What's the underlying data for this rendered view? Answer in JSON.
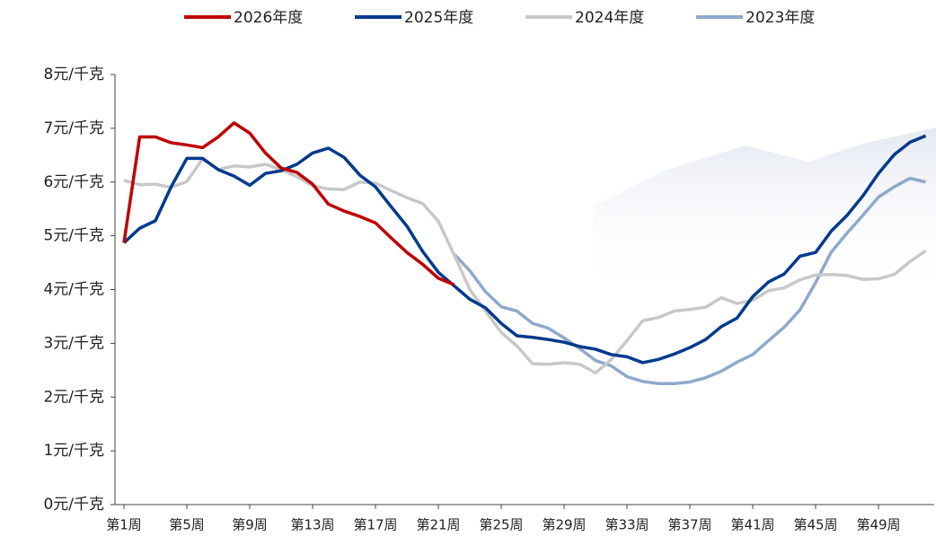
{
  "chart_data": {
    "type": "line",
    "categories": [
      "第1周",
      null,
      null,
      null,
      "第5周",
      null,
      null,
      null,
      "第9周",
      null,
      null,
      null,
      "第13周",
      null,
      null,
      null,
      "第17周",
      null,
      null,
      null,
      "第21周",
      null,
      null,
      null,
      "第25周",
      null,
      null,
      null,
      "第29周",
      null,
      null,
      null,
      "第33周",
      null,
      null,
      null,
      "第37周",
      null,
      null,
      null,
      "第41周",
      null,
      null,
      null,
      "第45周",
      null,
      null,
      null,
      "第49周",
      null,
      null,
      null
    ],
    "ylim": [
      0,
      8
    ],
    "yticks": [
      {
        "value": 0,
        "label": "0元/千克"
      },
      {
        "value": 1,
        "label": "1元/千克"
      },
      {
        "value": 2,
        "label": "2元/千克"
      },
      {
        "value": 3,
        "label": "3元/千克"
      },
      {
        "value": 4,
        "label": "4元/千克"
      },
      {
        "value": 5,
        "label": "5元/千克"
      },
      {
        "value": 6,
        "label": "6元/千克"
      },
      {
        "value": 7,
        "label": "7元/千克"
      },
      {
        "value": 8,
        "label": "8元/千克"
      }
    ],
    "legend": "top",
    "series": [
      {
        "name": "2026年度",
        "color": "#c00000",
        "values": [
          4.87,
          6.84,
          6.84,
          6.73,
          6.69,
          6.64,
          6.84,
          7.1,
          6.91,
          6.54,
          6.26,
          6.18,
          5.96,
          5.59,
          5.46,
          5.36,
          5.24,
          4.96,
          4.69,
          4.47,
          4.21,
          4.09,
          null,
          null,
          null,
          null,
          null,
          null,
          null,
          null,
          null,
          null,
          null,
          null,
          null,
          null,
          null,
          null,
          null,
          null,
          null,
          null,
          null,
          null,
          null,
          null,
          null,
          null,
          null,
          null,
          null,
          null
        ]
      },
      {
        "name": "2025年度",
        "color": "#003a8c",
        "values": [
          4.87,
          5.14,
          5.28,
          5.91,
          6.44,
          6.44,
          6.23,
          6.11,
          5.94,
          6.16,
          6.21,
          6.33,
          6.54,
          6.63,
          6.46,
          6.13,
          5.91,
          5.54,
          5.18,
          4.71,
          4.32,
          4.07,
          3.82,
          3.66,
          3.37,
          3.14,
          3.11,
          3.07,
          3.02,
          2.94,
          2.89,
          2.79,
          2.75,
          2.64,
          2.7,
          2.8,
          2.92,
          3.07,
          3.31,
          3.47,
          3.87,
          4.14,
          4.29,
          4.62,
          4.69,
          5.09,
          5.38,
          5.74,
          6.16,
          6.51,
          6.74,
          6.86
        ]
      },
      {
        "name": "2024年度",
        "color": "#c8c8c8",
        "values": [
          6.03,
          5.95,
          5.96,
          5.9,
          6.01,
          6.43,
          6.23,
          6.3,
          6.28,
          6.33,
          6.23,
          6.1,
          5.93,
          5.87,
          5.86,
          6.0,
          5.98,
          5.84,
          5.71,
          5.6,
          5.27,
          4.65,
          4.0,
          3.6,
          3.2,
          2.95,
          2.62,
          2.61,
          2.64,
          2.61,
          2.45,
          2.7,
          3.05,
          3.42,
          3.48,
          3.6,
          3.63,
          3.67,
          3.85,
          3.74,
          3.8,
          3.98,
          4.03,
          4.18,
          4.27,
          4.28,
          4.26,
          4.19,
          4.2,
          4.28,
          4.52,
          4.72
        ]
      },
      {
        "name": "2023年度",
        "color": "#8ea9cc",
        "values": [
          null,
          null,
          null,
          null,
          null,
          null,
          null,
          null,
          null,
          null,
          null,
          null,
          null,
          null,
          null,
          null,
          null,
          null,
          null,
          null,
          null,
          4.66,
          4.35,
          3.96,
          3.68,
          3.6,
          3.37,
          3.28,
          3.1,
          2.9,
          2.68,
          2.58,
          2.38,
          2.29,
          2.25,
          2.25,
          2.28,
          2.36,
          2.48,
          2.65,
          2.79,
          3.05,
          3.3,
          3.62,
          4.13,
          4.7,
          5.05,
          5.38,
          5.72,
          5.91,
          6.07,
          6.0
        ]
      }
    ]
  }
}
